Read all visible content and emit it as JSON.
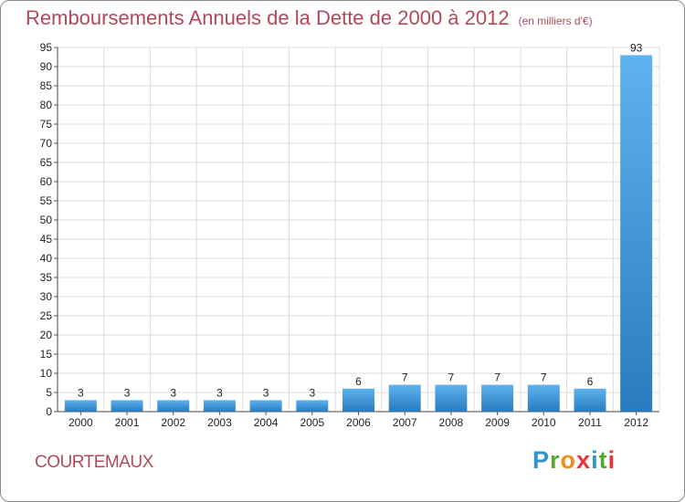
{
  "title": "Remboursements Annuels de la Dette de 2000 à 2012",
  "subtitle": "(en milliers d'€)",
  "commune": "COURTEMAUX",
  "logo": {
    "p": "P",
    "r": "r",
    "o": "o",
    "x": "x",
    "i1": "i",
    "t": "t",
    "i2": "i"
  },
  "colors": {
    "bar_light": "#5eb3ee",
    "bar_dark": "#2a7bbf",
    "title": "#b04a5a"
  },
  "chart_data": {
    "type": "bar",
    "title": "Remboursements Annuels de la Dette de 2000 à 2012",
    "subtitle": "(en milliers d'€)",
    "categories": [
      "2000",
      "2001",
      "2002",
      "2003",
      "2004",
      "2005",
      "2006",
      "2007",
      "2008",
      "2009",
      "2010",
      "2011",
      "2012"
    ],
    "values": [
      3,
      3,
      3,
      3,
      3,
      3,
      6,
      7,
      7,
      7,
      7,
      6,
      93
    ],
    "ylim": [
      0,
      95
    ],
    "yticks": [
      0,
      5,
      10,
      15,
      20,
      25,
      30,
      35,
      40,
      45,
      50,
      55,
      60,
      65,
      70,
      75,
      80,
      85,
      90,
      95
    ],
    "grid": true,
    "xlabel": "",
    "ylabel": ""
  }
}
